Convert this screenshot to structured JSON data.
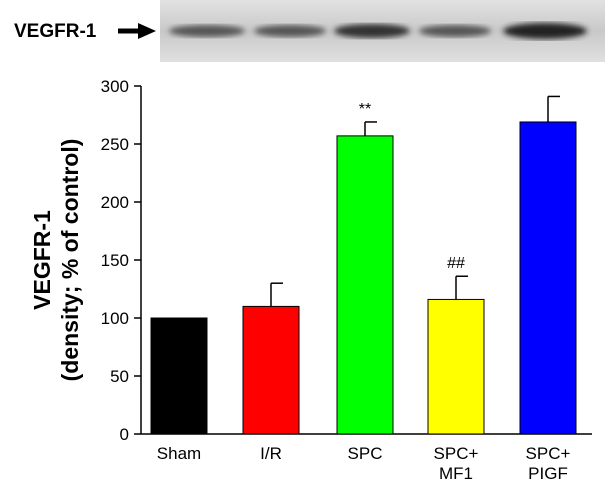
{
  "blot_label": "VEGFR-1",
  "chart_data": {
    "type": "bar",
    "ylabel": [
      "VEGFR-1",
      "(density; % of control)"
    ],
    "categories": [
      "Sham",
      "I/R",
      "SPC",
      "SPC+\nMF1",
      "SPC+\nPIGF"
    ],
    "values": [
      100,
      110,
      257,
      116,
      269
    ],
    "errors": [
      0,
      20,
      12,
      20,
      22
    ],
    "colors": [
      "#000000",
      "#ff0000",
      "#00ff00",
      "#ffff00",
      "#0000ff"
    ],
    "annotations": [
      null,
      null,
      "**",
      "##",
      null
    ],
    "ylim": [
      0,
      300
    ],
    "yticks": [
      0,
      50,
      100,
      150,
      200,
      250,
      300
    ]
  }
}
